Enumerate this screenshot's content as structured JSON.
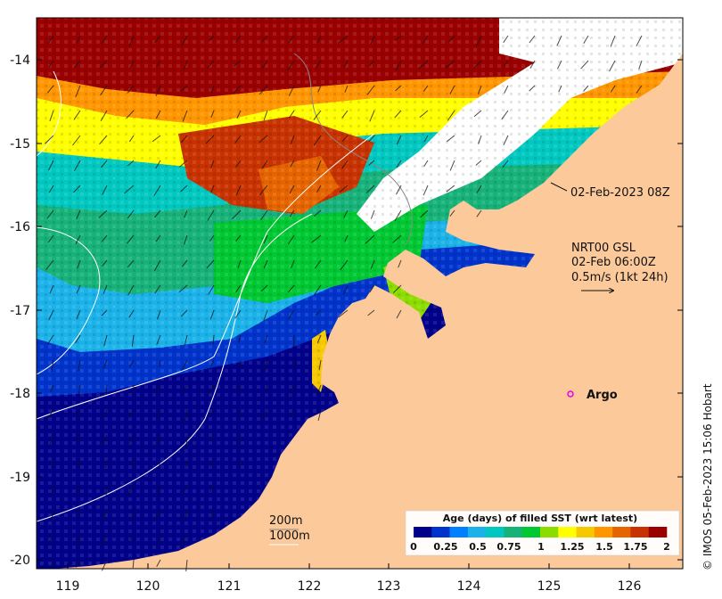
{
  "map": {
    "x_ticks": [
      "119",
      "120",
      "121",
      "122",
      "123",
      "124",
      "125",
      "126"
    ],
    "y_ticks": [
      "-14",
      "-15",
      "-16",
      "-17",
      "-18",
      "-19",
      "-20"
    ],
    "lon_range": [
      118.6,
      126.7
    ],
    "lat_range": [
      -20.1,
      -13.6
    ],
    "land_color": "#fcc99a",
    "no_data_color": "#ffffff"
  },
  "annotations": {
    "valid_time": "02-Feb-2023 08Z",
    "current_source": "NRT00 GSL",
    "current_time": "02-Feb 06:00Z",
    "scale_arrow_label": "0.5m/s (1kt 24h)",
    "argo_label": "Argo",
    "isobath_200": "200m",
    "isobath_1000": "1000m",
    "credit": "© IMOS 05-Feb-2023 15:06 Hobart"
  },
  "colorbar": {
    "title": "Age (days) of filled SST (wrt latest)",
    "tick_labels": [
      "0",
      "0.25",
      "0.5",
      "0.75",
      "1",
      "1.25",
      "1.5",
      "1.75",
      "2"
    ],
    "colors": [
      "#00008b",
      "#0033cc",
      "#0080ff",
      "#1ab2e8",
      "#00c8c0",
      "#17b27a",
      "#00c832",
      "#8cdc00",
      "#ffff00",
      "#f5c800",
      "#ff9600",
      "#e66400",
      "#c83200",
      "#9b0000"
    ],
    "range": [
      0,
      2
    ]
  },
  "argo_float": {
    "lon": 125.3,
    "lat": -18.0,
    "color": "#e600e6"
  }
}
